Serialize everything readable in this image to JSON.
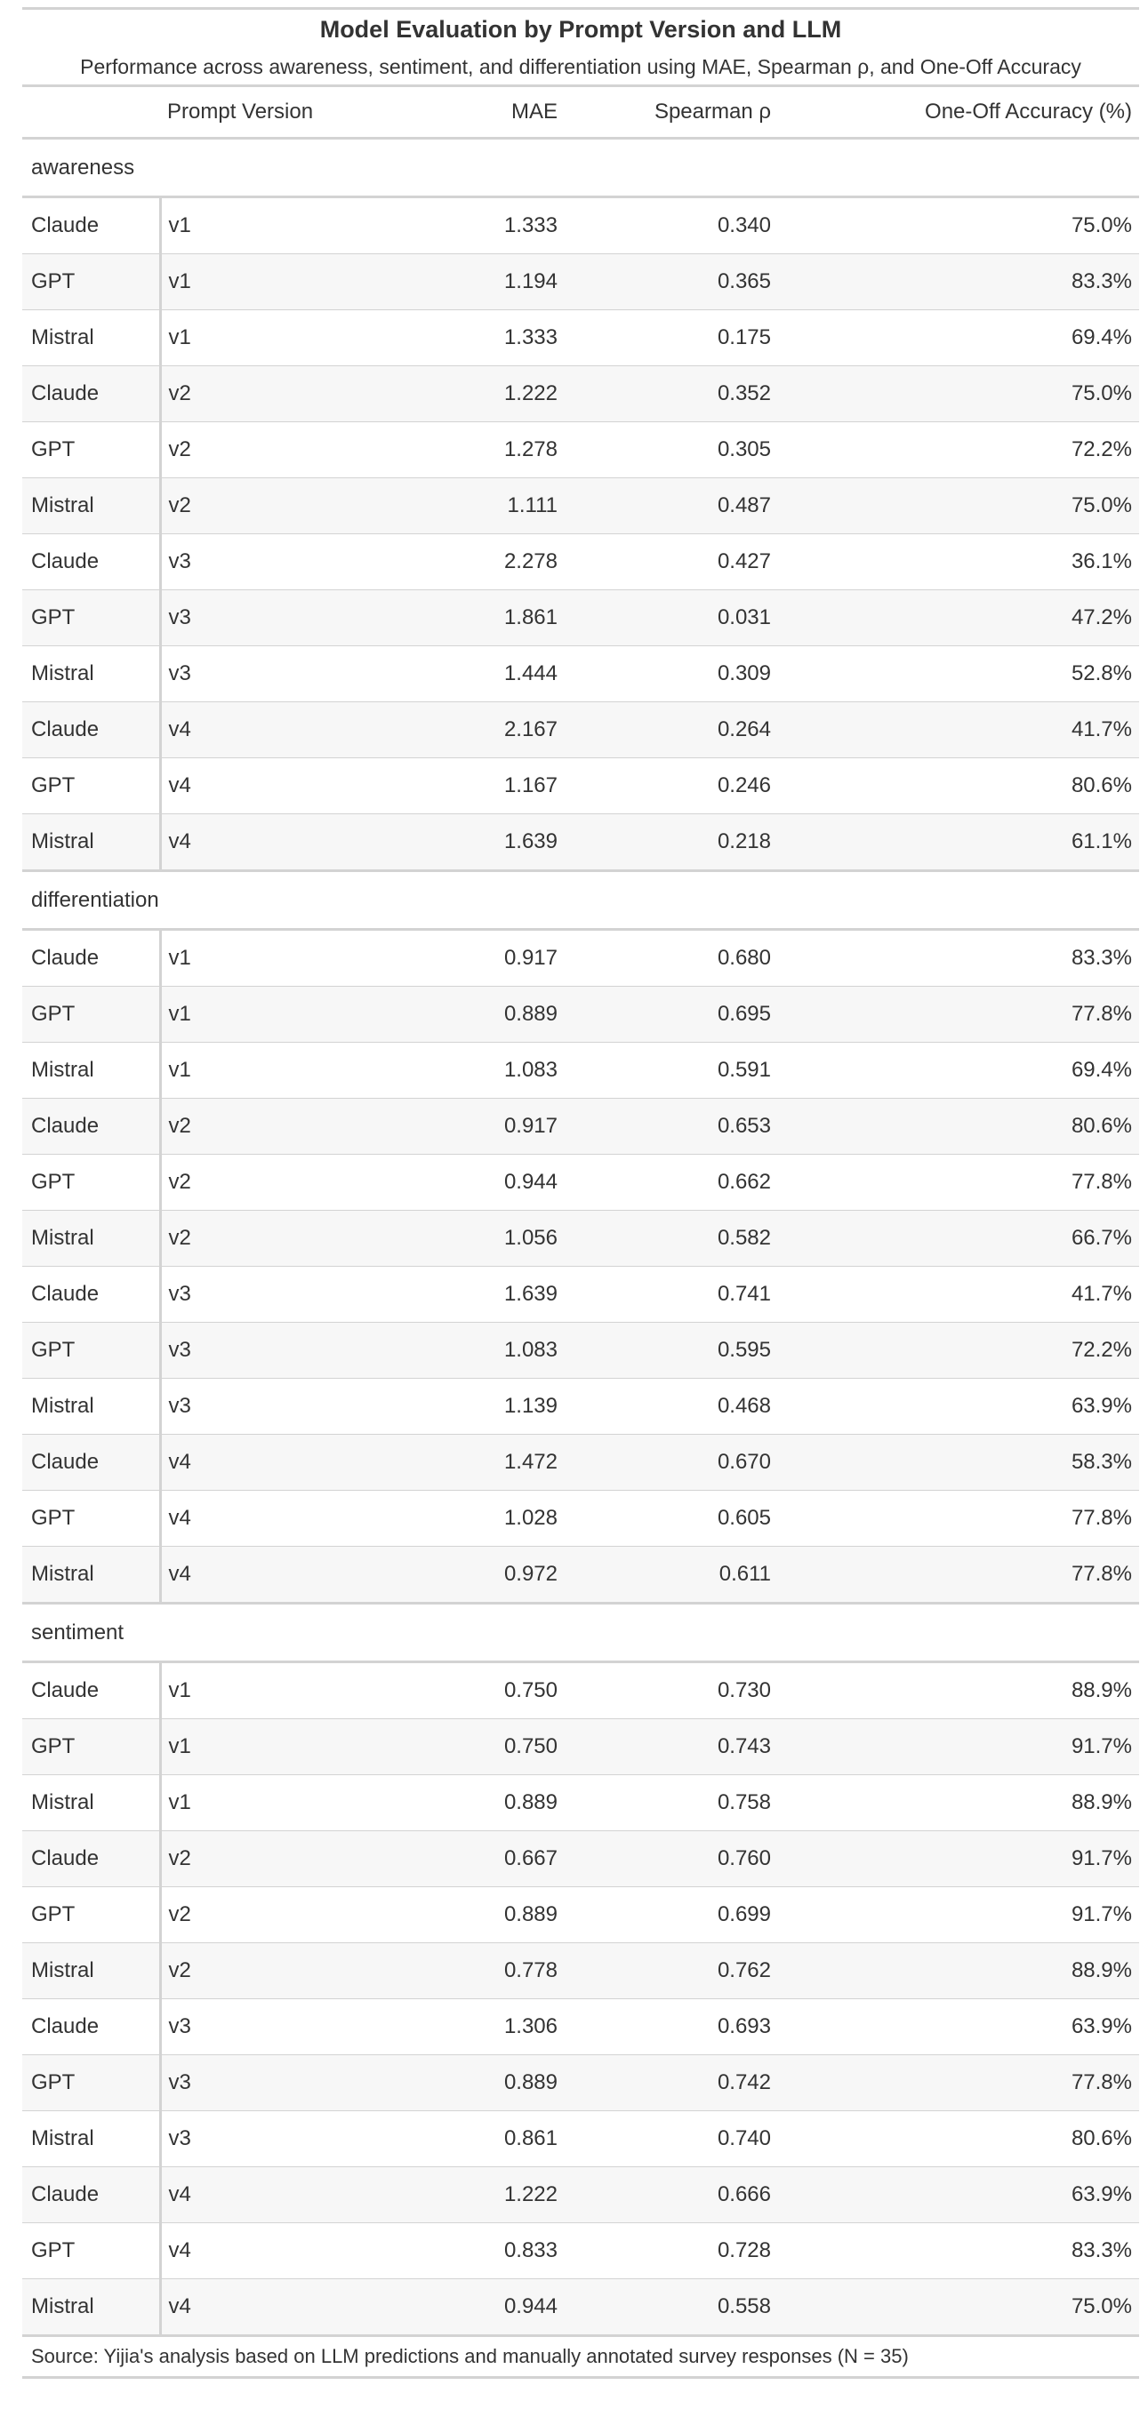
{
  "chart_data": {
    "type": "table",
    "title": "Model Evaluation by Prompt Version and LLM",
    "subtitle": "Performance across awareness, sentiment, and differentiation using MAE, Spearman ρ, and One-Off Accuracy",
    "columns": {
      "model": "",
      "version": "Prompt Version",
      "mae": "MAE",
      "rho": "Spearman ρ",
      "acc": "One-Off Accuracy (%)"
    },
    "groups": [
      {
        "label": "awareness",
        "rows": [
          {
            "model": "Claude",
            "version": "v1",
            "mae": "1.333",
            "rho": "0.340",
            "acc": "75.0%"
          },
          {
            "model": "GPT",
            "version": "v1",
            "mae": "1.194",
            "rho": "0.365",
            "acc": "83.3%"
          },
          {
            "model": "Mistral",
            "version": "v1",
            "mae": "1.333",
            "rho": "0.175",
            "acc": "69.4%"
          },
          {
            "model": "Claude",
            "version": "v2",
            "mae": "1.222",
            "rho": "0.352",
            "acc": "75.0%"
          },
          {
            "model": "GPT",
            "version": "v2",
            "mae": "1.278",
            "rho": "0.305",
            "acc": "72.2%"
          },
          {
            "model": "Mistral",
            "version": "v2",
            "mae": "1.111",
            "rho": "0.487",
            "acc": "75.0%"
          },
          {
            "model": "Claude",
            "version": "v3",
            "mae": "2.278",
            "rho": "0.427",
            "acc": "36.1%"
          },
          {
            "model": "GPT",
            "version": "v3",
            "mae": "1.861",
            "rho": "0.031",
            "acc": "47.2%"
          },
          {
            "model": "Mistral",
            "version": "v3",
            "mae": "1.444",
            "rho": "0.309",
            "acc": "52.8%"
          },
          {
            "model": "Claude",
            "version": "v4",
            "mae": "2.167",
            "rho": "0.264",
            "acc": "41.7%"
          },
          {
            "model": "GPT",
            "version": "v4",
            "mae": "1.167",
            "rho": "0.246",
            "acc": "80.6%"
          },
          {
            "model": "Mistral",
            "version": "v4",
            "mae": "1.639",
            "rho": "0.218",
            "acc": "61.1%"
          }
        ]
      },
      {
        "label": "differentiation",
        "rows": [
          {
            "model": "Claude",
            "version": "v1",
            "mae": "0.917",
            "rho": "0.680",
            "acc": "83.3%"
          },
          {
            "model": "GPT",
            "version": "v1",
            "mae": "0.889",
            "rho": "0.695",
            "acc": "77.8%"
          },
          {
            "model": "Mistral",
            "version": "v1",
            "mae": "1.083",
            "rho": "0.591",
            "acc": "69.4%"
          },
          {
            "model": "Claude",
            "version": "v2",
            "mae": "0.917",
            "rho": "0.653",
            "acc": "80.6%"
          },
          {
            "model": "GPT",
            "version": "v2",
            "mae": "0.944",
            "rho": "0.662",
            "acc": "77.8%"
          },
          {
            "model": "Mistral",
            "version": "v2",
            "mae": "1.056",
            "rho": "0.582",
            "acc": "66.7%"
          },
          {
            "model": "Claude",
            "version": "v3",
            "mae": "1.639",
            "rho": "0.741",
            "acc": "41.7%"
          },
          {
            "model": "GPT",
            "version": "v3",
            "mae": "1.083",
            "rho": "0.595",
            "acc": "72.2%"
          },
          {
            "model": "Mistral",
            "version": "v3",
            "mae": "1.139",
            "rho": "0.468",
            "acc": "63.9%"
          },
          {
            "model": "Claude",
            "version": "v4",
            "mae": "1.472",
            "rho": "0.670",
            "acc": "58.3%"
          },
          {
            "model": "GPT",
            "version": "v4",
            "mae": "1.028",
            "rho": "0.605",
            "acc": "77.8%"
          },
          {
            "model": "Mistral",
            "version": "v4",
            "mae": "0.972",
            "rho": "0.611",
            "acc": "77.8%"
          }
        ]
      },
      {
        "label": "sentiment",
        "rows": [
          {
            "model": "Claude",
            "version": "v1",
            "mae": "0.750",
            "rho": "0.730",
            "acc": "88.9%"
          },
          {
            "model": "GPT",
            "version": "v1",
            "mae": "0.750",
            "rho": "0.743",
            "acc": "91.7%"
          },
          {
            "model": "Mistral",
            "version": "v1",
            "mae": "0.889",
            "rho": "0.758",
            "acc": "88.9%"
          },
          {
            "model": "Claude",
            "version": "v2",
            "mae": "0.667",
            "rho": "0.760",
            "acc": "91.7%"
          },
          {
            "model": "GPT",
            "version": "v2",
            "mae": "0.889",
            "rho": "0.699",
            "acc": "91.7%"
          },
          {
            "model": "Mistral",
            "version": "v2",
            "mae": "0.778",
            "rho": "0.762",
            "acc": "88.9%"
          },
          {
            "model": "Claude",
            "version": "v3",
            "mae": "1.306",
            "rho": "0.693",
            "acc": "63.9%"
          },
          {
            "model": "GPT",
            "version": "v3",
            "mae": "0.889",
            "rho": "0.742",
            "acc": "77.8%"
          },
          {
            "model": "Mistral",
            "version": "v3",
            "mae": "0.861",
            "rho": "0.740",
            "acc": "80.6%"
          },
          {
            "model": "Claude",
            "version": "v4",
            "mae": "1.222",
            "rho": "0.666",
            "acc": "63.9%"
          },
          {
            "model": "GPT",
            "version": "v4",
            "mae": "0.833",
            "rho": "0.728",
            "acc": "83.3%"
          },
          {
            "model": "Mistral",
            "version": "v4",
            "mae": "0.944",
            "rho": "0.558",
            "acc": "75.0%"
          }
        ]
      }
    ],
    "source": "Source: Yijia's analysis based on LLM predictions and manually annotated survey responses (N = 35)"
  },
  "colors": {
    "text": "#333333",
    "rule": "#d3d3d3",
    "stripe": "#f7f7f7"
  }
}
